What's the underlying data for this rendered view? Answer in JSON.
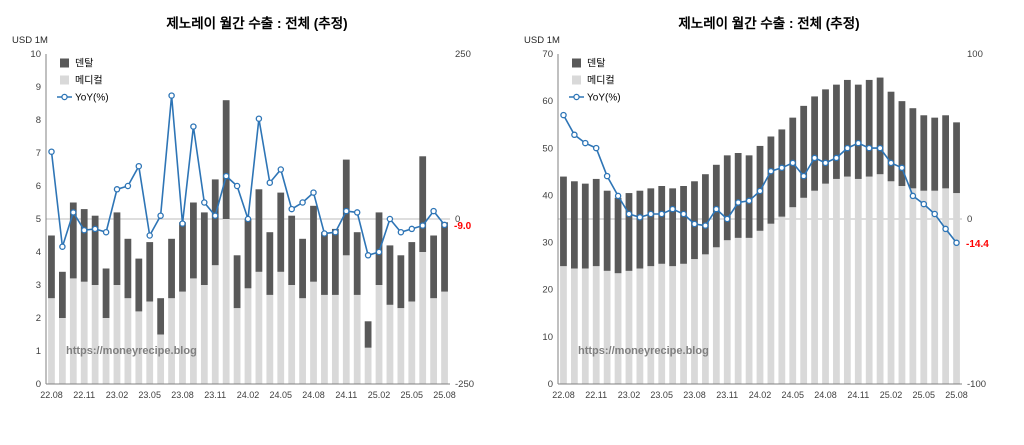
{
  "page": {
    "background": "#FFFFFF"
  },
  "chart_data": [
    {
      "type": "bar",
      "subtype": "stacked-bar-with-line",
      "title": "제노레이 월간 수출 : 전체 (추정)",
      "unit_label": "USD 1M",
      "watermark": "https://moneyrecipe.blog",
      "legend": [
        {
          "label": "덴탈",
          "color": "#595959",
          "kind": "rect"
        },
        {
          "label": "메디컬",
          "color": "#D9D9D9",
          "kind": "rect"
        },
        {
          "label": "YoY(%)",
          "color": "#2E75B6",
          "kind": "line"
        }
      ],
      "stack_order": [
        "메디컬",
        "덴탈"
      ],
      "categories": [
        "22.08",
        "22.09",
        "22.10",
        "22.11",
        "22.12",
        "23.01",
        "23.02",
        "23.03",
        "23.04",
        "23.05",
        "23.06",
        "23.07",
        "23.08",
        "23.09",
        "23.10",
        "23.11",
        "23.12",
        "24.01",
        "24.02",
        "24.03",
        "24.04",
        "24.05",
        "24.06",
        "24.07",
        "24.08",
        "24.09",
        "24.10",
        "24.11",
        "24.12",
        "25.01",
        "25.02",
        "25.03",
        "25.04",
        "25.05",
        "25.06",
        "25.07",
        "25.08"
      ],
      "x_tick_labels": [
        "22.08",
        "22.11",
        "23.02",
        "23.05",
        "23.08",
        "23.11",
        "24.02",
        "24.05",
        "24.08",
        "24.11",
        "25.02",
        "25.05",
        "25.08"
      ],
      "x_tick_step": 3,
      "axis_left": {
        "min": 0,
        "max": 10,
        "step": 1
      },
      "axis_right": {
        "min": -250,
        "max": 250,
        "tick_labels": [
          250,
          0,
          -250
        ]
      },
      "series": [
        {
          "name": "덴탈",
          "type": "bar",
          "color": "#595959",
          "values": [
            1.9,
            1.4,
            2.3,
            2.2,
            2.1,
            1.5,
            2.2,
            1.8,
            1.6,
            1.8,
            1.1,
            1.8,
            2.1,
            2.3,
            2.2,
            2.6,
            3.6,
            1.6,
            2.1,
            2.5,
            1.9,
            2.4,
            2.1,
            1.8,
            2.3,
            1.9,
            2.0,
            2.9,
            1.9,
            0.8,
            2.2,
            1.8,
            1.6,
            1.8,
            2.9,
            1.9,
            2.1
          ]
        },
        {
          "name": "메디컬",
          "type": "bar",
          "color": "#D9D9D9",
          "values": [
            2.6,
            2.0,
            3.2,
            3.1,
            3.0,
            2.0,
            3.0,
            2.6,
            2.2,
            2.5,
            1.5,
            2.6,
            2.8,
            3.2,
            3.0,
            3.6,
            5.0,
            2.3,
            2.9,
            3.4,
            2.7,
            3.4,
            3.0,
            2.6,
            3.1,
            2.7,
            2.7,
            3.9,
            2.7,
            1.1,
            3.0,
            2.4,
            2.3,
            2.5,
            4.0,
            2.6,
            2.8
          ]
        },
        {
          "name": "YoY(%)",
          "type": "line",
          "axis": "right",
          "color": "#2E75B6",
          "values": [
            102,
            -42,
            10,
            -17,
            -15,
            -20,
            45,
            50,
            80,
            -25,
            5,
            187,
            -7,
            140,
            25,
            5,
            65,
            50,
            0,
            152,
            55,
            75,
            15,
            25,
            40,
            -22,
            -20,
            12,
            10,
            -55,
            -50,
            0,
            -20,
            -15,
            -10,
            12,
            -9.0
          ]
        }
      ],
      "annotation": {
        "text": "-9.0",
        "color": "#FF0000"
      }
    },
    {
      "type": "bar",
      "subtype": "stacked-bar-with-line",
      "title": "제노레이 월간 수출 : 전체 (추정)",
      "unit_label": "USD 1M",
      "watermark": "https://moneyrecipe.blog",
      "legend": [
        {
          "label": "덴탈",
          "color": "#595959",
          "kind": "rect"
        },
        {
          "label": "메디컬",
          "color": "#D9D9D9",
          "kind": "rect"
        },
        {
          "label": "YoY(%)",
          "color": "#2E75B6",
          "kind": "line"
        }
      ],
      "stack_order": [
        "메디컬",
        "덴탈"
      ],
      "categories": [
        "22.08",
        "22.09",
        "22.10",
        "22.11",
        "22.12",
        "23.01",
        "23.02",
        "23.03",
        "23.04",
        "23.05",
        "23.06",
        "23.07",
        "23.08",
        "23.09",
        "23.10",
        "23.11",
        "23.12",
        "24.01",
        "24.02",
        "24.03",
        "24.04",
        "24.05",
        "24.06",
        "24.07",
        "24.08",
        "24.09",
        "24.10",
        "24.11",
        "24.12",
        "25.01",
        "25.02",
        "25.03",
        "25.04",
        "25.05",
        "25.06",
        "25.07",
        "25.08"
      ],
      "x_tick_labels": [
        "22.08",
        "22.11",
        "23.02",
        "23.05",
        "23.08",
        "23.11",
        "24.02",
        "24.05",
        "24.08",
        "24.11",
        "25.02",
        "25.05",
        "25.08"
      ],
      "x_tick_step": 3,
      "axis_left": {
        "min": 0,
        "max": 70,
        "step": 10
      },
      "axis_right": {
        "min": -100,
        "max": 100,
        "tick_labels": [
          100,
          0,
          -100
        ]
      },
      "series": [
        {
          "name": "덴탈",
          "type": "bar",
          "color": "#595959",
          "values": [
            19,
            18.5,
            18,
            18.5,
            17,
            16,
            16.5,
            16.5,
            16.5,
            16.5,
            16.5,
            16.5,
            16.5,
            17,
            17.5,
            18,
            18,
            17.5,
            18,
            18.5,
            18.5,
            19,
            19.5,
            20,
            20,
            20,
            20.5,
            20,
            20.5,
            20.5,
            19,
            18,
            17,
            16,
            15.5,
            15.5,
            15
          ]
        },
        {
          "name": "메디컬",
          "type": "bar",
          "color": "#D9D9D9",
          "values": [
            25,
            24.5,
            24.5,
            25,
            24,
            23.5,
            24,
            24.5,
            25,
            25.5,
            25,
            25.5,
            26.5,
            27.5,
            29,
            30.5,
            31,
            31,
            32.5,
            34,
            35.5,
            37.5,
            39.5,
            41,
            42.5,
            43.5,
            44,
            43.5,
            44,
            44.5,
            43,
            42,
            41.5,
            41,
            41,
            41.5,
            40.5
          ]
        },
        {
          "name": "YoY(%)",
          "type": "line",
          "axis": "right",
          "color": "#2E75B6",
          "values": [
            63,
            51,
            46,
            43,
            26,
            14,
            3,
            1,
            3,
            3,
            6,
            3,
            -3,
            -4,
            6,
            0,
            10,
            11,
            17,
            29,
            31,
            34,
            26,
            37,
            34,
            37,
            43,
            46,
            43,
            43,
            34,
            31,
            14,
            9,
            3,
            -6,
            -14.4
          ]
        }
      ],
      "annotation": {
        "text": "-14.4",
        "color": "#FF0000"
      }
    }
  ]
}
